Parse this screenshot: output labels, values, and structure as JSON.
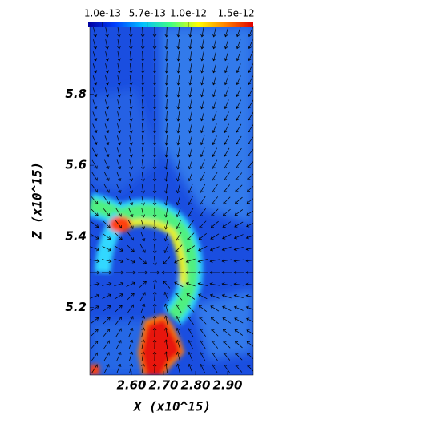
{
  "chart_data": {
    "type": "heatmap",
    "xlabel": "X (x10^15)",
    "ylabel": "Z (x10^15)",
    "xlim": [
      2.47,
      2.98
    ],
    "xticks": [
      {
        "value": 2.6,
        "label": "2.60"
      },
      {
        "value": 2.7,
        "label": "2.70"
      },
      {
        "value": 2.8,
        "label": "2.80"
      },
      {
        "value": 2.9,
        "label": "2.90"
      }
    ],
    "ylim": [
      5.01,
      5.99
    ],
    "yticks": [
      5.2,
      5.4,
      5.6,
      5.8
    ],
    "clim": [
      -5e-14,
      1.68e-12
    ],
    "cticks": [
      {
        "value": 1e-13,
        "label": "1.0e-13"
      },
      {
        "value": 5.7e-13,
        "label": "5.7e-13"
      },
      {
        "value": 1e-12,
        "label": "1.0e-12"
      },
      {
        "value": 1.5e-12,
        "label": "1.5e-12"
      }
    ],
    "colormap": [
      "#0000a0",
      "#0040ff",
      "#00c0ff",
      "#40ff80",
      "#ffff00",
      "#ff8000",
      "#e00000"
    ]
  }
}
